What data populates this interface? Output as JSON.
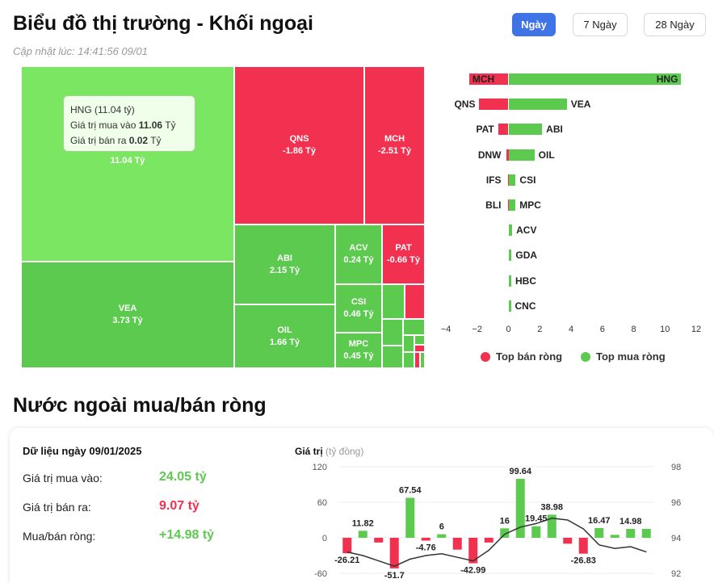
{
  "header": {
    "title": "Biểu đồ thị trường - Khối ngoại",
    "updated": "Cập nhật lúc: 14:41:56 09/01"
  },
  "range_tabs": [
    {
      "label": "Ngày",
      "active": true
    },
    {
      "label": "7 Ngày",
      "active": false
    },
    {
      "label": "28 Ngày",
      "active": false
    }
  ],
  "treemap": {
    "tiles": [
      {
        "ticker": "HNG",
        "value": "11.04 Tỷ",
        "side": "buy"
      },
      {
        "ticker": "QNS",
        "value": "-1.86 Tỷ",
        "side": "sell"
      },
      {
        "ticker": "MCH",
        "value": "-2.51 Tỷ",
        "side": "sell"
      },
      {
        "ticker": "VEA",
        "value": "3.73 Tỷ",
        "side": "buy"
      },
      {
        "ticker": "ABI",
        "value": "2.15 Tỷ",
        "side": "buy"
      },
      {
        "ticker": "ACV",
        "value": "0.24 Tỷ",
        "side": "buy"
      },
      {
        "ticker": "PAT",
        "value": "-0.66 Tỷ",
        "side": "sell"
      },
      {
        "ticker": "OIL",
        "value": "1.66 Tỷ",
        "side": "buy"
      },
      {
        "ticker": "CSI",
        "value": "0.46 Tỷ",
        "side": "buy"
      },
      {
        "ticker": "MPC",
        "value": "0.45 Tỷ",
        "side": "buy"
      }
    ],
    "tooltip": {
      "title": "HNG (11.04 tỷ)",
      "buy_label": "Giá trị mua vào",
      "buy_value": "11.06",
      "buy_unit": "Tỷ",
      "sell_label": "Giá trị bán ra",
      "sell_value": "0.02",
      "sell_unit": "Tỷ"
    }
  },
  "top_bars": {
    "legend_sell": "Top bán ròng",
    "legend_buy": "Top mua ròng",
    "color_sell": "#f2304f",
    "color_buy": "#5cc94f",
    "x_ticks": [
      "−4",
      "−2",
      "0",
      "2",
      "4",
      "6",
      "8",
      "10",
      "12"
    ]
  },
  "chart_data": [
    {
      "type": "bar",
      "title": "",
      "xlim": [
        -4,
        12
      ],
      "rows": [
        {
          "sell": "MCH",
          "sell_value": -2.51,
          "buy": "HNG",
          "buy_value": 11.04
        },
        {
          "sell": "QNS",
          "sell_value": -1.86,
          "buy": "VEA",
          "buy_value": 3.73
        },
        {
          "sell": "PAT",
          "sell_value": -0.66,
          "buy": "ABI",
          "buy_value": 2.15
        },
        {
          "sell": "DNW",
          "sell_value": -0.15,
          "buy": "OIL",
          "buy_value": 1.66
        },
        {
          "sell": "IFS",
          "sell_value": -0.02,
          "buy": "CSI",
          "buy_value": 0.46
        },
        {
          "sell": "BLI",
          "sell_value": -0.01,
          "buy": "MPC",
          "buy_value": 0.45
        },
        {
          "sell": "",
          "sell_value": 0,
          "buy": "ACV",
          "buy_value": 0.24
        },
        {
          "sell": "",
          "sell_value": 0,
          "buy": "GDA",
          "buy_value": 0.2
        },
        {
          "sell": "",
          "sell_value": 0,
          "buy": "HBC",
          "buy_value": 0.18
        },
        {
          "sell": "",
          "sell_value": 0,
          "buy": "CNC",
          "buy_value": 0.15
        }
      ]
    },
    {
      "type": "bar",
      "title": "",
      "ylabel": "Giá trị",
      "ylabel_unit": "(tỷ đồng)",
      "ylim": [
        -60,
        120
      ],
      "y2lim": [
        92,
        98
      ],
      "y_ticks": [
        "120",
        "60",
        "0",
        "-60"
      ],
      "y2_ticks": [
        "98",
        "96",
        "94",
        "92"
      ],
      "series": [
        {
          "values": [
            -26.21,
            11.82,
            -8,
            -51.7,
            67.54,
            -4.76,
            6,
            -20,
            -42.99,
            -8,
            16,
            99.64,
            19.45,
            38.98,
            -10,
            -26.83,
            16.47,
            5,
            14.98,
            15
          ]
        },
        {
          "values": [
            93.2,
            93.0,
            92.7,
            92.4,
            92.8,
            93.0,
            93.1,
            92.9,
            92.7,
            93.3,
            94.2,
            94.6,
            94.8,
            95.1,
            95.0,
            94.5,
            93.6,
            93.4,
            93.5,
            93.2
          ]
        }
      ],
      "data_labels": [
        {
          "text": "-26.21",
          "index": 0
        },
        {
          "text": "11.82",
          "index": 1
        },
        {
          "text": "-51.7",
          "index": 3
        },
        {
          "text": "67.54",
          "index": 4
        },
        {
          "text": "-4.76",
          "index": 5
        },
        {
          "text": "6",
          "index": 6
        },
        {
          "text": "-42.99",
          "index": 8
        },
        {
          "text": "16",
          "index": 10
        },
        {
          "text": "99.64",
          "index": 11
        },
        {
          "text": "19.45",
          "index": 12
        },
        {
          "text": "38.98",
          "index": 13
        },
        {
          "text": "-26.83",
          "index": 15
        },
        {
          "text": "16.47",
          "index": 16
        },
        {
          "text": "14.98",
          "index": 18
        }
      ]
    }
  ],
  "net_section": {
    "title": "Nước ngoài mua/bán ròng",
    "date_label": "Dữ liệu ngày 09/01/2025",
    "buy_label": "Giá trị mua vào:",
    "buy_value": "24.05 tỷ",
    "sell_label": "Giá trị bán ra:",
    "sell_value": "9.07 tỷ",
    "net_label": "Mua/bán ròng:",
    "net_value": "+14.98 tỷ"
  }
}
